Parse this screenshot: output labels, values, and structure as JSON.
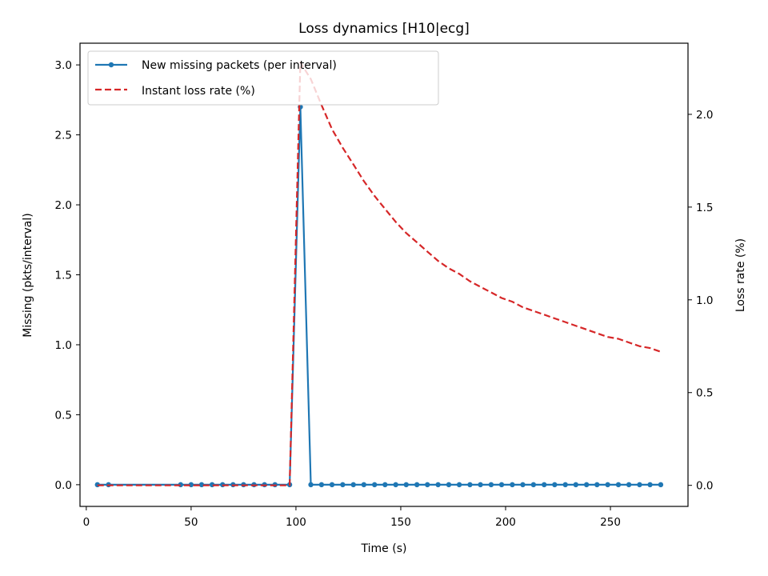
{
  "chart_data": {
    "type": "line",
    "title": "Loss dynamics [H10|ecg]",
    "xlabel": "Time (s)",
    "ylabel_left": "Missing (pkts/interval)",
    "ylabel_right": "Loss rate (%)",
    "xlim": [
      -3,
      287
    ],
    "ylim_left": [
      -0.155,
      3.155
    ],
    "ylim_right": [
      -0.1135,
      2.3835
    ],
    "xticks": [
      0,
      50,
      100,
      150,
      200,
      250
    ],
    "xtick_labels": [
      "0",
      "50",
      "100",
      "150",
      "200",
      "250"
    ],
    "yticks_left": [
      0.0,
      0.5,
      1.0,
      1.5,
      2.0,
      2.5,
      3.0
    ],
    "ytick_labels_left": [
      "0.0",
      "0.5",
      "1.0",
      "1.5",
      "2.0",
      "2.5",
      "3.0"
    ],
    "yticks_right": [
      0.0,
      0.5,
      1.0,
      1.5,
      2.0
    ],
    "ytick_labels_right": [
      "0.0",
      "0.5",
      "1.0",
      "1.5",
      "2.0"
    ],
    "grid": false,
    "legend_position": "upper-left",
    "series": [
      {
        "name": "New missing packets (per interval)",
        "axis": "left",
        "style": "solid-with-markers",
        "color": "#1f77b4",
        "x": [
          5.3,
          10.6,
          45.0,
          50.0,
          55.0,
          60.0,
          65.0,
          70.0,
          75.0,
          80.0,
          85.0,
          90.0,
          97.0,
          102.1,
          107.1,
          112.2,
          117.2,
          122.3,
          127.4,
          132.4,
          137.5,
          142.5,
          147.6,
          152.6,
          157.7,
          162.7,
          167.8,
          172.9,
          177.9,
          183.0,
          188.0,
          193.1,
          198.1,
          203.2,
          208.2,
          213.3,
          218.4,
          223.4,
          228.5,
          233.5,
          238.6,
          243.6,
          248.7,
          253.8,
          258.8,
          263.9,
          268.9,
          274.0
        ],
        "y": [
          0,
          0,
          0,
          0,
          0,
          0,
          0,
          0,
          0,
          0,
          0,
          0,
          0,
          2.7,
          0,
          0,
          0,
          0,
          0,
          0,
          0,
          0,
          0,
          0,
          0,
          0,
          0,
          0,
          0,
          0,
          0,
          0,
          0,
          0,
          0,
          0,
          0,
          0,
          0,
          0,
          0,
          0,
          0,
          0,
          0,
          0,
          0,
          0
        ]
      },
      {
        "name": "Instant loss rate (%)",
        "axis": "right",
        "style": "dashed",
        "color": "#d62728",
        "x": [
          5.3,
          97.0,
          102.1,
          107.1,
          112.2,
          117.2,
          122.3,
          127.4,
          132.4,
          137.5,
          142.5,
          147.6,
          152.6,
          157.7,
          162.7,
          167.8,
          172.9,
          177.9,
          183.0,
          188.0,
          193.1,
          198.1,
          203.2,
          208.2,
          213.3,
          218.4,
          223.4,
          228.5,
          233.5,
          238.6,
          243.6,
          248.7,
          253.8,
          258.8,
          263.9,
          268.9,
          274.0
        ],
        "y": [
          0,
          0,
          2.28,
          2.19,
          2.05,
          1.92,
          1.82,
          1.73,
          1.64,
          1.56,
          1.49,
          1.42,
          1.36,
          1.31,
          1.26,
          1.21,
          1.17,
          1.14,
          1.1,
          1.07,
          1.04,
          1.01,
          0.99,
          0.96,
          0.94,
          0.92,
          0.9,
          0.88,
          0.86,
          0.84,
          0.82,
          0.8,
          0.79,
          0.77,
          0.75,
          0.74,
          0.72
        ]
      }
    ]
  }
}
